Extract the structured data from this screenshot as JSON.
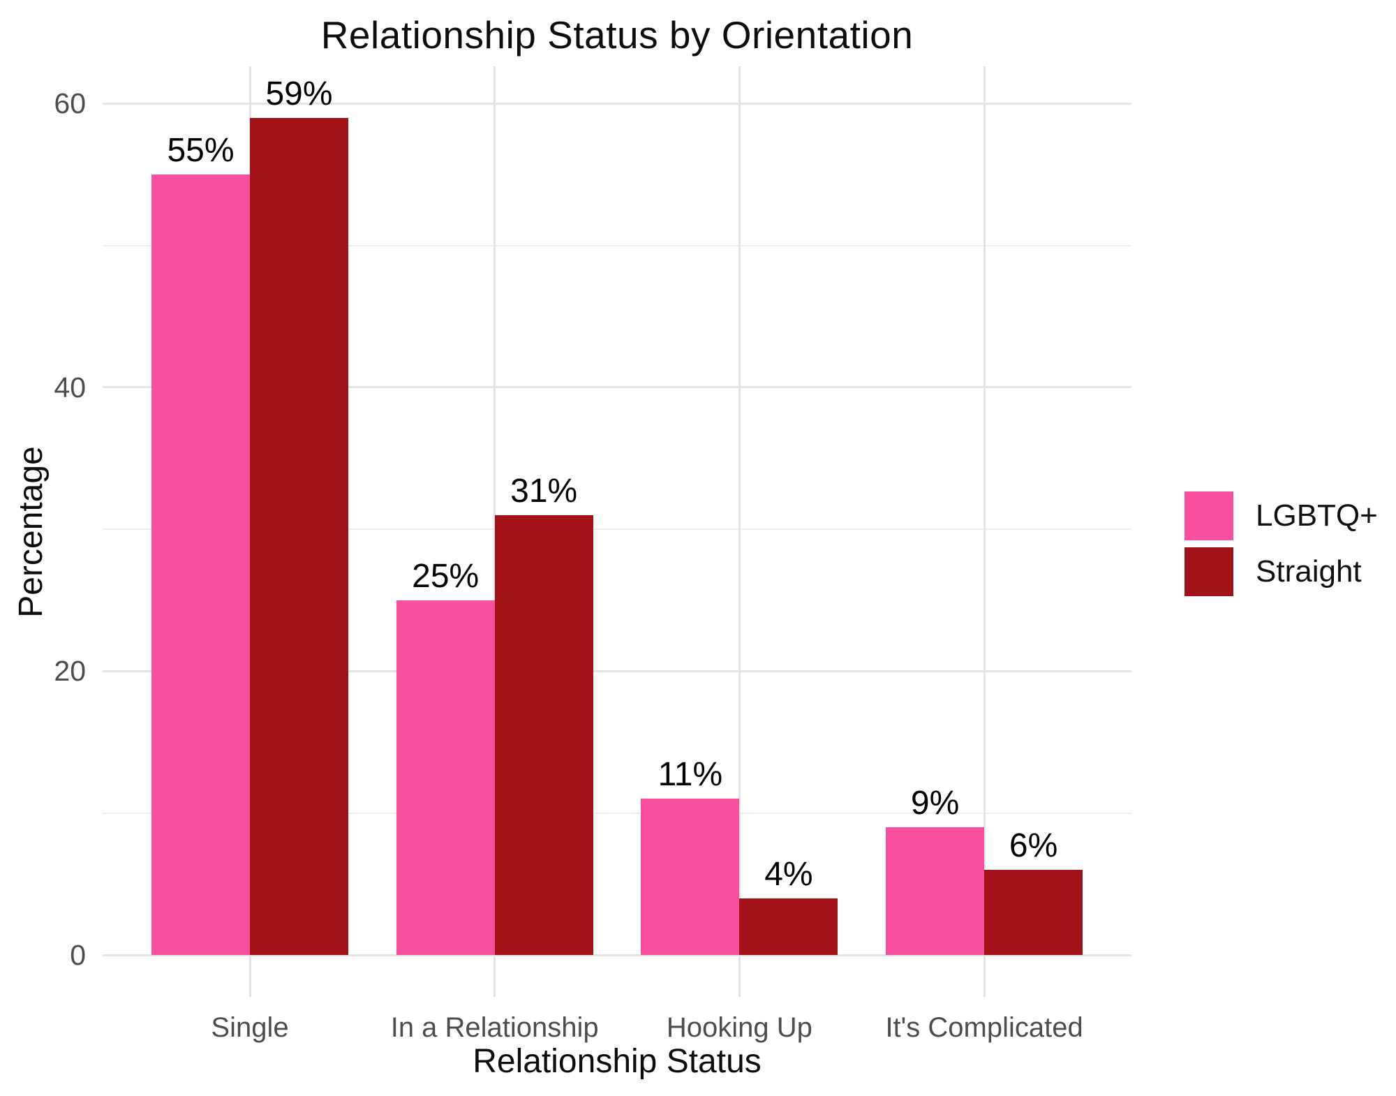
{
  "chart_data": {
    "type": "bar",
    "title": "Relationship Status by Orientation",
    "xlabel": "Relationship Status",
    "ylabel": "Percentage",
    "categories": [
      "Single",
      "In a Relationship",
      "Hooking Up",
      "It's Complicated"
    ],
    "series": [
      {
        "name": "LGBTQ+",
        "color": "#F8509E",
        "values": [
          55,
          25,
          11,
          9
        ]
      },
      {
        "name": "Straight",
        "color": "#A31218",
        "values": [
          59,
          31,
          4,
          6
        ]
      }
    ],
    "value_label_suffix": "%",
    "ylim": [
      0,
      62
    ],
    "yticks": [
      0,
      20,
      40,
      60
    ],
    "yticks_minor": [
      10,
      30,
      50
    ],
    "grid": true,
    "legend_position": "right",
    "colors": {
      "background": "#ffffff",
      "grid_major": "#e3e3e3",
      "grid_minor": "#ededed",
      "tick_label": "#4d4d4d",
      "text": "#0d0d0d"
    }
  }
}
